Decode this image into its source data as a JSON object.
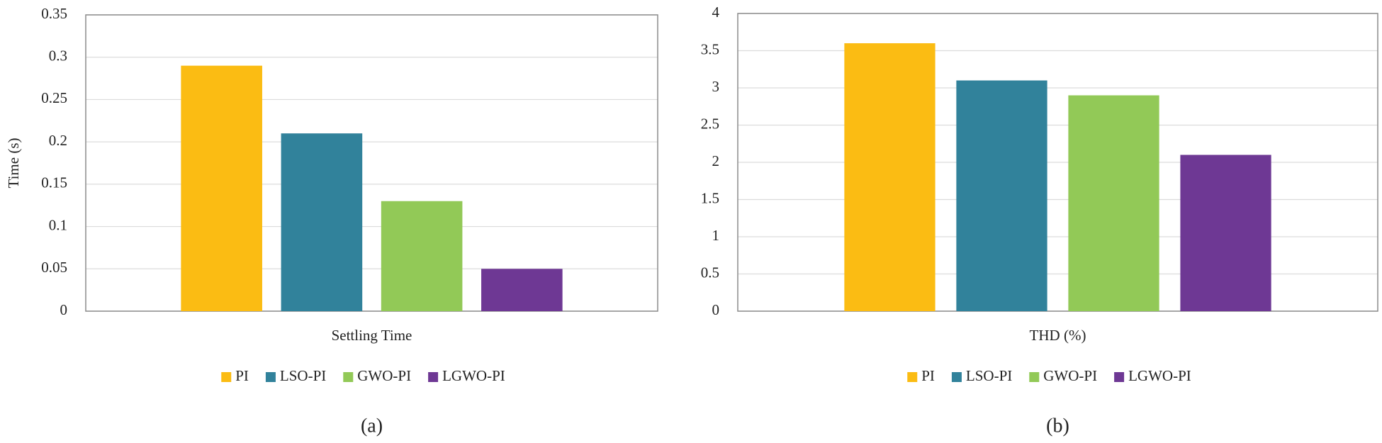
{
  "chart_data": [
    {
      "type": "bar",
      "y_label": "Time (s)",
      "categories": [
        "Settling Time"
      ],
      "caption": "(a)",
      "series": [
        {
          "name": "PI",
          "color": "#fbbc13",
          "values": [
            0.29
          ]
        },
        {
          "name": "LSO-PI",
          "color": "#31829b",
          "values": [
            0.21
          ]
        },
        {
          "name": "GWO-PI",
          "color": "#92c957",
          "values": [
            0.13
          ]
        },
        {
          "name": "LGWO-PI",
          "color": "#6e3894",
          "values": [
            0.05
          ]
        }
      ],
      "ylim": [
        0,
        0.35
      ],
      "yticks": [
        0,
        0.05,
        0.1,
        0.15,
        0.2,
        0.25,
        0.3,
        0.35
      ],
      "grid": true,
      "legend": "bottom"
    },
    {
      "type": "bar",
      "categories": [
        "THD (%)"
      ],
      "caption": "(b)",
      "series": [
        {
          "name": "PI",
          "color": "#fbbc13",
          "values": [
            3.6
          ]
        },
        {
          "name": "LSO-PI",
          "color": "#31829b",
          "values": [
            3.1
          ]
        },
        {
          "name": "GWO-PI",
          "color": "#92c957",
          "values": [
            2.9
          ]
        },
        {
          "name": "LGWO-PI",
          "color": "#6e3894",
          "values": [
            2.1
          ]
        }
      ],
      "ylim": [
        0,
        4
      ],
      "yticks": [
        0,
        0.5,
        1,
        1.5,
        2,
        2.5,
        3,
        3.5,
        4
      ],
      "grid": true,
      "legend": "bottom"
    }
  ]
}
